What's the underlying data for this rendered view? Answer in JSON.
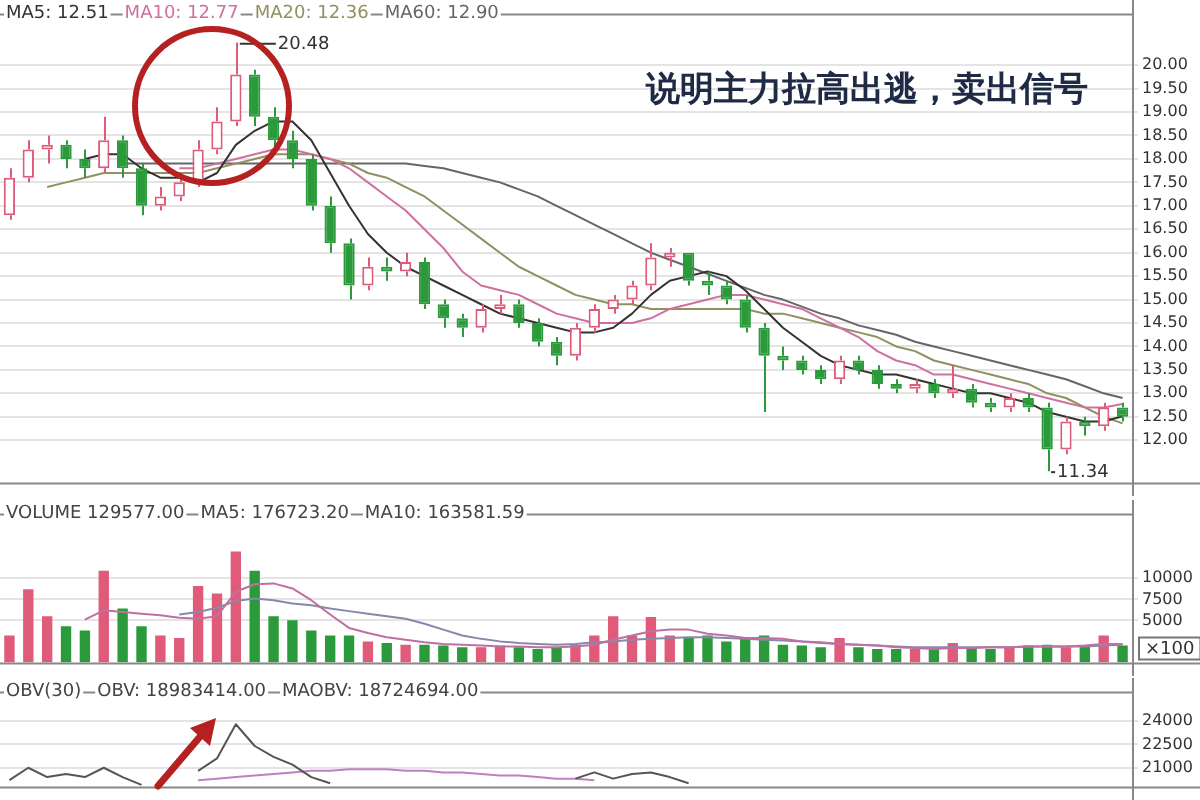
{
  "chart_data": [
    {
      "type": "candlestick",
      "categories": [
        null,
        null,
        null,
        null,
        null,
        null,
        null,
        null,
        null,
        null,
        null,
        null,
        null,
        null,
        null,
        null,
        null,
        null,
        null,
        null,
        null,
        null,
        null,
        null,
        null,
        null,
        null,
        null,
        null,
        null,
        null,
        null,
        null,
        null,
        null,
        null,
        null,
        null,
        null,
        null,
        null,
        null,
        null,
        null,
        null,
        null,
        null,
        null,
        null,
        null,
        null,
        null,
        null,
        null,
        null,
        null,
        null,
        null,
        null,
        null
      ],
      "ohlc": [
        [
          16.8,
          17.8,
          16.7,
          17.6
        ],
        [
          17.6,
          18.4,
          17.5,
          18.2
        ],
        [
          18.2,
          18.5,
          17.9,
          18.3
        ],
        [
          18.3,
          18.4,
          17.8,
          18.0
        ],
        [
          18.0,
          18.2,
          17.6,
          17.8
        ],
        [
          17.8,
          18.9,
          17.7,
          18.4
        ],
        [
          18.4,
          18.5,
          17.6,
          17.8
        ],
        [
          17.8,
          17.9,
          16.8,
          17.0
        ],
        [
          17.0,
          17.4,
          16.9,
          17.2
        ],
        [
          17.2,
          17.7,
          17.1,
          17.5
        ],
        [
          17.5,
          18.4,
          17.4,
          18.2
        ],
        [
          18.2,
          19.1,
          18.1,
          18.8
        ],
        [
          18.8,
          20.48,
          18.7,
          19.8
        ],
        [
          19.8,
          19.9,
          18.7,
          18.9
        ],
        [
          18.9,
          19.1,
          18.2,
          18.4
        ],
        [
          18.4,
          18.6,
          17.8,
          18.0
        ],
        [
          18.0,
          18.1,
          16.9,
          17.0
        ],
        [
          17.0,
          17.2,
          16.0,
          16.2
        ],
        [
          16.2,
          16.3,
          15.0,
          15.3
        ],
        [
          15.3,
          15.9,
          15.2,
          15.7
        ],
        [
          15.7,
          15.9,
          15.4,
          15.6
        ],
        [
          15.6,
          16.0,
          15.5,
          15.8
        ],
        [
          15.8,
          15.9,
          14.8,
          14.9
        ],
        [
          14.9,
          15.0,
          14.4,
          14.6
        ],
        [
          14.6,
          14.7,
          14.2,
          14.4
        ],
        [
          14.4,
          14.9,
          14.3,
          14.8
        ],
        [
          14.8,
          15.1,
          14.7,
          14.9
        ],
        [
          14.9,
          15.0,
          14.4,
          14.5
        ],
        [
          14.5,
          14.6,
          14.0,
          14.1
        ],
        [
          14.1,
          14.2,
          13.6,
          13.8
        ],
        [
          13.8,
          14.5,
          13.7,
          14.4
        ],
        [
          14.4,
          14.9,
          14.3,
          14.8
        ],
        [
          14.8,
          15.1,
          14.7,
          15.0
        ],
        [
          15.0,
          15.4,
          14.9,
          15.3
        ],
        [
          15.3,
          16.2,
          15.2,
          15.9
        ],
        [
          15.9,
          16.1,
          15.7,
          16.0
        ],
        [
          16.0,
          16.0,
          15.3,
          15.4
        ],
        [
          15.4,
          15.6,
          15.1,
          15.3
        ],
        [
          15.3,
          15.4,
          14.9,
          15.0
        ],
        [
          15.0,
          15.1,
          14.3,
          14.4
        ],
        [
          14.4,
          14.5,
          12.6,
          13.8
        ],
        [
          13.8,
          14.0,
          13.5,
          13.7
        ],
        [
          13.7,
          13.8,
          13.4,
          13.5
        ],
        [
          13.5,
          13.6,
          13.2,
          13.3
        ],
        [
          13.3,
          13.8,
          13.2,
          13.7
        ],
        [
          13.7,
          13.8,
          13.4,
          13.5
        ],
        [
          13.5,
          13.6,
          13.1,
          13.2
        ],
        [
          13.2,
          13.3,
          13.0,
          13.1
        ],
        [
          13.1,
          13.3,
          13.0,
          13.2
        ],
        [
          13.2,
          13.3,
          12.9,
          13.0
        ],
        [
          13.0,
          13.6,
          12.9,
          13.1
        ],
        [
          13.1,
          13.2,
          12.7,
          12.8
        ],
        [
          12.8,
          12.9,
          12.6,
          12.7
        ],
        [
          12.7,
          13.0,
          12.6,
          12.9
        ],
        [
          12.9,
          13.0,
          12.6,
          12.7
        ],
        [
          12.7,
          12.8,
          11.34,
          11.8
        ],
        [
          11.8,
          12.5,
          11.7,
          12.4
        ],
        [
          12.4,
          12.5,
          12.1,
          12.3
        ],
        [
          12.3,
          12.8,
          12.2,
          12.7
        ],
        [
          12.7,
          12.8,
          12.4,
          12.5
        ]
      ],
      "colors": [
        "#e05a7a",
        "#e05a7a",
        "#e05a7a",
        "#2a9a3a",
        "#2a9a3a",
        "#e05a7a",
        "#2a9a3a",
        "#2a9a3a",
        "#e05a7a",
        "#e05a7a",
        "#e05a7a",
        "#e05a7a",
        "#e05a7a",
        "#2a9a3a",
        "#2a9a3a",
        "#2a9a3a",
        "#2a9a3a",
        "#2a9a3a",
        "#2a9a3a",
        "#e05a7a",
        "#2a9a3a",
        "#e05a7a",
        "#2a9a3a",
        "#2a9a3a",
        "#2a9a3a",
        "#e05a7a",
        "#e05a7a",
        "#2a9a3a",
        "#2a9a3a",
        "#2a9a3a",
        "#e05a7a",
        "#e05a7a",
        "#e05a7a",
        "#e05a7a",
        "#e05a7a",
        "#e05a7a",
        "#2a9a3a",
        "#2a9a3a",
        "#2a9a3a",
        "#2a9a3a",
        "#2a9a3a",
        "#2a9a3a",
        "#2a9a3a",
        "#2a9a3a",
        "#e05a7a",
        "#2a9a3a",
        "#2a9a3a",
        "#2a9a3a",
        "#e05a7a",
        "#2a9a3a",
        "#e05a7a",
        "#2a9a3a",
        "#2a9a3a",
        "#e05a7a",
        "#2a9a3a",
        "#2a9a3a",
        "#e05a7a",
        "#2a9a3a",
        "#e05a7a",
        "#2a9a3a"
      ],
      "series": [
        {
          "name": "MA5: 12.51",
          "type": "line",
          "color": "#333333",
          "values": [
            null,
            null,
            null,
            null,
            18.0,
            18.1,
            18.1,
            17.8,
            17.6,
            17.6,
            17.5,
            17.7,
            18.3,
            18.6,
            18.8,
            18.8,
            18.4,
            17.7,
            17.0,
            16.4,
            16.0,
            15.7,
            15.5,
            15.3,
            15.1,
            14.9,
            14.7,
            14.6,
            14.5,
            14.4,
            14.3,
            14.3,
            14.4,
            14.7,
            15.1,
            15.4,
            15.5,
            15.6,
            15.5,
            15.2,
            14.8,
            14.4,
            14.1,
            13.8,
            13.6,
            13.5,
            13.4,
            13.4,
            13.3,
            13.2,
            13.1,
            13.0,
            13.0,
            12.9,
            12.8,
            12.6,
            12.5,
            12.4,
            12.4,
            12.51
          ]
        },
        {
          "name": "MA10: 12.77",
          "type": "line",
          "color": "#d070a0",
          "values": [
            null,
            null,
            null,
            null,
            null,
            null,
            null,
            null,
            null,
            17.8,
            17.8,
            17.9,
            18.0,
            18.1,
            18.2,
            18.2,
            18.1,
            18.0,
            17.8,
            17.5,
            17.2,
            16.9,
            16.5,
            16.1,
            15.6,
            15.3,
            15.2,
            15.1,
            14.9,
            14.7,
            14.6,
            14.5,
            14.5,
            14.5,
            14.6,
            14.8,
            14.9,
            15.0,
            15.1,
            15.1,
            15.0,
            14.9,
            14.8,
            14.6,
            14.4,
            14.2,
            13.9,
            13.7,
            13.6,
            13.4,
            13.4,
            13.3,
            13.2,
            13.1,
            13.0,
            12.9,
            12.8,
            12.7,
            12.7,
            12.77
          ]
        },
        {
          "name": "MA20: 12.36",
          "type": "line",
          "color": "#909060",
          "values": [
            null,
            null,
            17.4,
            17.5,
            17.6,
            17.7,
            17.7,
            17.7,
            17.7,
            17.7,
            17.7,
            17.8,
            17.9,
            18.0,
            18.1,
            18.1,
            18.1,
            18.0,
            17.9,
            17.7,
            17.6,
            17.4,
            17.2,
            16.9,
            16.6,
            16.3,
            16.0,
            15.7,
            15.5,
            15.3,
            15.1,
            15.0,
            14.9,
            14.9,
            14.8,
            14.8,
            14.8,
            14.8,
            14.8,
            14.8,
            14.7,
            14.7,
            14.6,
            14.5,
            14.4,
            14.3,
            14.2,
            14.0,
            13.9,
            13.7,
            13.6,
            13.5,
            13.4,
            13.3,
            13.2,
            13.0,
            12.9,
            12.7,
            12.5,
            12.36
          ]
        },
        {
          "name": "MA60: 12.90",
          "type": "line",
          "color": "#666666",
          "values": [
            null,
            null,
            null,
            null,
            null,
            null,
            17.9,
            17.9,
            17.9,
            17.9,
            17.9,
            17.9,
            17.9,
            17.9,
            17.9,
            17.9,
            17.9,
            17.9,
            17.9,
            17.9,
            17.9,
            17.9,
            17.85,
            17.8,
            17.7,
            17.6,
            17.5,
            17.35,
            17.2,
            17.0,
            16.8,
            16.6,
            16.4,
            16.2,
            16.0,
            15.85,
            15.7,
            15.55,
            15.4,
            15.25,
            15.1,
            15.0,
            14.85,
            14.7,
            14.6,
            14.45,
            14.35,
            14.25,
            14.1,
            14.0,
            13.9,
            13.8,
            13.7,
            13.6,
            13.5,
            13.4,
            13.3,
            13.15,
            13.0,
            12.9
          ]
        }
      ],
      "ylim": [
        11.1,
        21.1
      ],
      "yticks": [
        {
          "value": 12,
          "label": "12.00"
        },
        {
          "value": 12.5,
          "label": "12.50"
        },
        {
          "value": 13,
          "label": "13.00"
        },
        {
          "value": 13.5,
          "label": "13.50"
        },
        {
          "value": 14,
          "label": "14.00"
        },
        {
          "value": 14.5,
          "label": "14.50"
        },
        {
          "value": 15,
          "label": "15.00"
        },
        {
          "value": 15.5,
          "label": "15.50"
        },
        {
          "value": 16,
          "label": "16.00"
        },
        {
          "value": 16.5,
          "label": "16.50"
        },
        {
          "value": 17,
          "label": "17.00"
        },
        {
          "value": 17.5,
          "label": "17.50"
        },
        {
          "value": 18,
          "label": "18.00"
        },
        {
          "value": 18.5,
          "label": "18.50"
        },
        {
          "value": 19,
          "label": "19.00"
        },
        {
          "value": 19.5,
          "label": "19.50"
        },
        {
          "value": 20,
          "label": "20.00"
        }
      ],
      "grid": "y",
      "tick_labels": "y",
      "marker": "none",
      "annotations": [
        "说明主力拉高出逃，卖出信号",
        "20.48",
        "11.34"
      ]
    },
    {
      "type": "bar",
      "categories": [
        null,
        null,
        null,
        null,
        null,
        null,
        null,
        null,
        null,
        null,
        null,
        null,
        null,
        null,
        null,
        null,
        null,
        null,
        null,
        null,
        null,
        null,
        null,
        null,
        null,
        null,
        null,
        null,
        null,
        null,
        null,
        null,
        null,
        null,
        null,
        null,
        null,
        null,
        null,
        null,
        null,
        null,
        null,
        null,
        null,
        null,
        null,
        null,
        null,
        null,
        null,
        null,
        null,
        null,
        null,
        null,
        null,
        null,
        null,
        null
      ],
      "values": [
        3200,
        8700,
        5500,
        4300,
        3800,
        10900,
        6400,
        4300,
        3200,
        2900,
        9100,
        8200,
        13200,
        10900,
        5500,
        5000,
        3800,
        3200,
        3200,
        2500,
        2300,
        2100,
        2100,
        2000,
        1800,
        1800,
        2000,
        1800,
        1600,
        1800,
        2100,
        3200,
        5500,
        3200,
        5400,
        3200,
        2900,
        3200,
        2500,
        2900,
        3200,
        2100,
        2000,
        1800,
        2900,
        1800,
        1600,
        1600,
        1600,
        1600,
        2300,
        1800,
        1600,
        1800,
        2000,
        2100,
        1800,
        2000,
        3200,
        2000
      ],
      "colors": [
        "#e05a7a",
        "#e05a7a",
        "#e05a7a",
        "#2a9a3a",
        "#2a9a3a",
        "#e05a7a",
        "#2a9a3a",
        "#2a9a3a",
        "#e05a7a",
        "#e05a7a",
        "#e05a7a",
        "#e05a7a",
        "#e05a7a",
        "#2a9a3a",
        "#2a9a3a",
        "#2a9a3a",
        "#2a9a3a",
        "#2a9a3a",
        "#2a9a3a",
        "#e05a7a",
        "#2a9a3a",
        "#e05a7a",
        "#2a9a3a",
        "#2a9a3a",
        "#2a9a3a",
        "#e05a7a",
        "#e05a7a",
        "#2a9a3a",
        "#2a9a3a",
        "#2a9a3a",
        "#e05a7a",
        "#e05a7a",
        "#e05a7a",
        "#e05a7a",
        "#e05a7a",
        "#e05a7a",
        "#2a9a3a",
        "#2a9a3a",
        "#2a9a3a",
        "#2a9a3a",
        "#2a9a3a",
        "#2a9a3a",
        "#2a9a3a",
        "#2a9a3a",
        "#e05a7a",
        "#2a9a3a",
        "#2a9a3a",
        "#2a9a3a",
        "#e05a7a",
        "#2a9a3a",
        "#e05a7a",
        "#2a9a3a",
        "#2a9a3a",
        "#e05a7a",
        "#2a9a3a",
        "#2a9a3a",
        "#e05a7a",
        "#2a9a3a",
        "#e05a7a",
        "#2a9a3a"
      ],
      "series": [
        {
          "type": "line",
          "color": "#c070a0",
          "values": [
            null,
            null,
            null,
            null,
            5100,
            6200,
            6000,
            5800,
            5600,
            5300,
            5200,
            5500,
            8400,
            9300,
            9400,
            8800,
            7400,
            5700,
            4100,
            3500,
            3000,
            2700,
            2400,
            2200,
            2100,
            2000,
            1900,
            1900,
            1800,
            1800,
            1900,
            2100,
            2700,
            3200,
            3700,
            3900,
            3900,
            3400,
            3200,
            2900,
            2900,
            2800,
            2500,
            2300,
            2200,
            2100,
            2000,
            1800,
            1700,
            1600,
            1700,
            1700,
            1800,
            1800,
            1900,
            1900,
            1900,
            2000,
            2200,
            2200
          ]
        },
        {
          "type": "line",
          "color": "#8888aa",
          "values": [
            null,
            null,
            null,
            null,
            null,
            null,
            null,
            null,
            null,
            5700,
            6000,
            6500,
            7300,
            7600,
            7400,
            7000,
            6800,
            6400,
            6100,
            5800,
            5500,
            5200,
            4600,
            3900,
            3200,
            2800,
            2500,
            2300,
            2200,
            2100,
            2200,
            2400,
            2500,
            2700,
            2800,
            2900,
            3000,
            3000,
            2900,
            2800,
            2700,
            2600,
            2500,
            2400,
            2200,
            2100,
            2000,
            1900,
            1800,
            1800,
            1800,
            1800,
            1800,
            1800,
            1900,
            1900,
            1900,
            1900,
            2000,
            2100
          ]
        }
      ],
      "ylim": [
        0,
        17700
      ],
      "yticks": [
        5000,
        7500,
        10000
      ],
      "ylabel": "×100",
      "grid": "y",
      "tick_labels": "y",
      "marker": "none",
      "annotations": [
        "VOLUME 129577.00",
        "MA5: 176723.20",
        "MA10: 163581.59"
      ]
    },
    {
      "type": "line",
      "categories": [
        null,
        null,
        null,
        null,
        null,
        null,
        null,
        null,
        null,
        null,
        null,
        null,
        null,
        null,
        null,
        null,
        null,
        null,
        null,
        null,
        null,
        null,
        null,
        null,
        null,
        null,
        null,
        null,
        null,
        null,
        null,
        null,
        null,
        null,
        null,
        null,
        null,
        null,
        null,
        null,
        null,
        null,
        null,
        null,
        null,
        null,
        null,
        null,
        null,
        null,
        null,
        null,
        null,
        null,
        null,
        null,
        null,
        null,
        null,
        null
      ],
      "series": [
        {
          "color": "#555555",
          "values": [
            20200,
            21000,
            20400,
            20600,
            20400,
            21000,
            20400,
            19900,
            null,
            null,
            20800,
            21600,
            23800,
            22400,
            21700,
            21200,
            20400,
            20000,
            null,
            null,
            null,
            null,
            null,
            null,
            null,
            null,
            null,
            null,
            null,
            null,
            20300,
            20700,
            20300,
            20600,
            20700,
            20400,
            20000,
            null,
            null,
            null,
            null,
            null,
            null,
            null,
            null,
            null,
            null,
            null,
            null,
            null,
            null,
            null,
            null,
            null,
            null,
            null,
            null,
            null,
            null,
            null
          ]
        },
        {
          "color": "#c080c0",
          "values": [
            null,
            null,
            null,
            null,
            null,
            null,
            null,
            null,
            null,
            null,
            20200,
            20300,
            20400,
            20500,
            20600,
            20700,
            20800,
            20800,
            20900,
            20900,
            20900,
            20800,
            20800,
            20700,
            20700,
            20600,
            20500,
            20500,
            20400,
            20300,
            20300,
            20200,
            null,
            null,
            null,
            null,
            null,
            null,
            null,
            null,
            null,
            null,
            null,
            null,
            null,
            null,
            null,
            null,
            null,
            null,
            null,
            null,
            null,
            null,
            null,
            null,
            null,
            null,
            null,
            null
          ]
        }
      ],
      "ylim": [
        19800,
        25900
      ],
      "yticks": [
        21000,
        22500,
        24000
      ],
      "grid": "y",
      "tick_labels": "y",
      "marker": "none",
      "annotations": [
        "OBV(30)",
        "OBV: 18983414.00",
        "MAOBV: 18724694.00"
      ]
    }
  ]
}
